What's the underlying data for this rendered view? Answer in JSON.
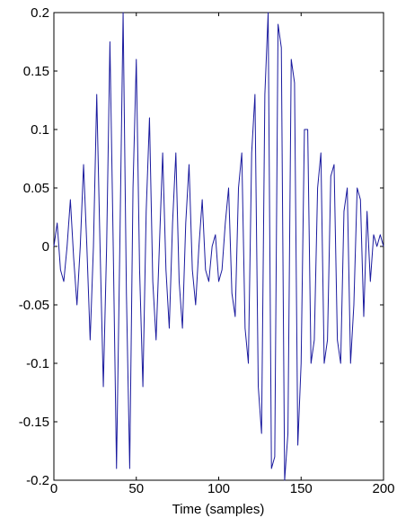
{
  "chart_data": {
    "type": "line",
    "title": "",
    "xlabel": "Time (samples)",
    "ylabel": "",
    "xlim": [
      0,
      200
    ],
    "ylim": [
      -0.2,
      0.2
    ],
    "xticks": [
      0,
      50,
      100,
      150,
      200
    ],
    "xtick_labels": [
      "0",
      "50",
      "100",
      "150",
      "200"
    ],
    "yticks": [
      -0.2,
      -0.15,
      -0.1,
      -0.05,
      0,
      0.05,
      0.1,
      0.15,
      0.2
    ],
    "ytick_labels": [
      "-0.2",
      "-0.15",
      "-0.1",
      "-0.05",
      "0",
      "0.05",
      "0.1",
      "0.15",
      "0.2"
    ],
    "grid": false,
    "series": [
      {
        "color": "#1a1a9e",
        "x": [
          0,
          2,
          4,
          6,
          8,
          10,
          12,
          14,
          16,
          18,
          20,
          22,
          24,
          26,
          28,
          30,
          32,
          34,
          36,
          38,
          40,
          42,
          44,
          46,
          48,
          50,
          52,
          54,
          56,
          58,
          60,
          62,
          64,
          66,
          68,
          70,
          72,
          74,
          76,
          78,
          80,
          82,
          84,
          86,
          88,
          90,
          92,
          94,
          96,
          98,
          100,
          102,
          104,
          106,
          108,
          110,
          112,
          114,
          116,
          118,
          120,
          122,
          124,
          126,
          128,
          130,
          132,
          134,
          136,
          138,
          140,
          142,
          144,
          146,
          148,
          150,
          152,
          154,
          156,
          158,
          160,
          162,
          164,
          166,
          168,
          170,
          172,
          174,
          176,
          178,
          180,
          182,
          184,
          186,
          188,
          190,
          192,
          194,
          196,
          198,
          200
        ],
        "values": [
          0.0,
          0.02,
          -0.02,
          -0.03,
          0.0,
          0.04,
          -0.01,
          -0.05,
          0.0,
          0.07,
          0.0,
          -0.08,
          0.0,
          0.13,
          0.0,
          -0.12,
          0.0,
          0.175,
          0.0,
          -0.19,
          0.0,
          0.2,
          -0.04,
          -0.19,
          0.05,
          0.16,
          -0.02,
          -0.12,
          0.03,
          0.11,
          -0.03,
          -0.08,
          0.0,
          0.08,
          -0.02,
          -0.07,
          0.02,
          0.08,
          -0.03,
          -0.07,
          0.02,
          0.07,
          -0.02,
          -0.05,
          0.0,
          0.04,
          -0.02,
          -0.03,
          0.0,
          0.01,
          -0.03,
          -0.02,
          0.02,
          0.05,
          -0.04,
          -0.06,
          0.05,
          0.08,
          -0.07,
          -0.1,
          0.08,
          0.13,
          -0.12,
          -0.16,
          0.13,
          0.2,
          -0.19,
          -0.18,
          0.19,
          0.17,
          -0.2,
          -0.16,
          0.16,
          0.14,
          -0.17,
          -0.1,
          0.1,
          0.1,
          -0.1,
          -0.08,
          0.05,
          0.08,
          -0.1,
          -0.08,
          0.06,
          0.07,
          -0.08,
          -0.1,
          0.03,
          0.05,
          -0.1,
          -0.05,
          0.05,
          0.04,
          -0.06,
          0.03,
          -0.03,
          0.01,
          0.0,
          0.01,
          0.0
        ]
      }
    ]
  }
}
